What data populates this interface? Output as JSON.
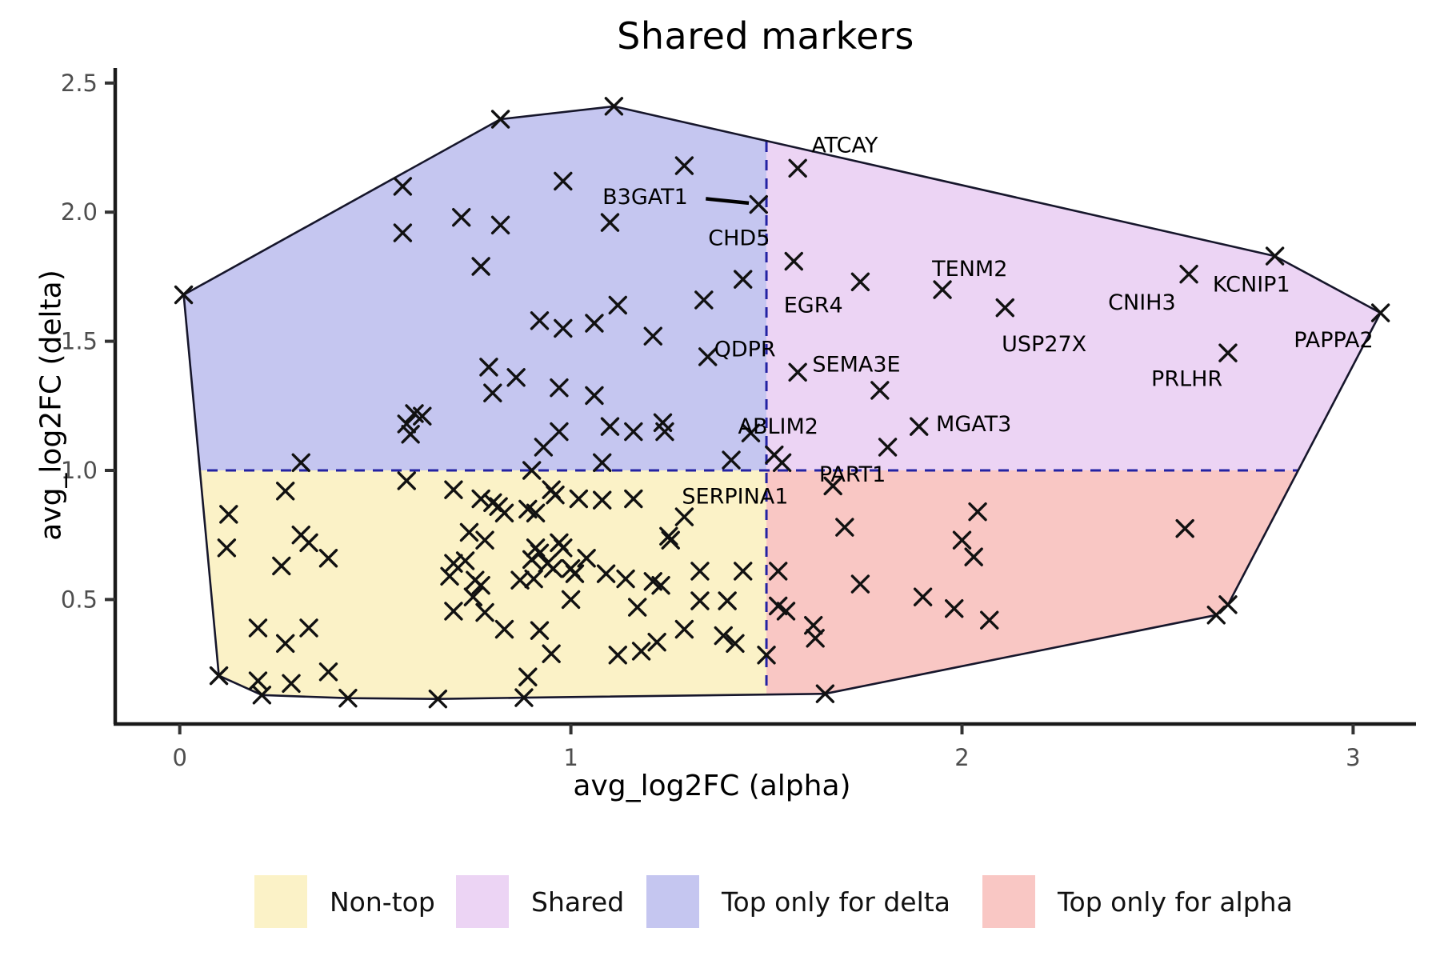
{
  "chart_data": {
    "type": "scatter",
    "title": "Shared markers",
    "xlabel": "avg_log2FC (alpha)",
    "ylabel": "avg_log2FC (delta)",
    "xlim": [
      -0.165,
      3.16
    ],
    "ylim": [
      0.018,
      2.558
    ],
    "x_ticks": [
      "0",
      "1",
      "2",
      "3"
    ],
    "x_tick_values": [
      0,
      1,
      2,
      3
    ],
    "y_ticks": [
      "0.5",
      "1.0",
      "1.5",
      "2.0",
      "2.5"
    ],
    "y_tick_values": [
      0.5,
      1.0,
      1.5,
      2.0,
      2.5
    ],
    "grid": "off",
    "threshold_x": 1.5,
    "threshold_y": 1.0,
    "threshold_line_color": "#2323A3",
    "point_color": "#111111",
    "hull_stroke_color": "#16162B",
    "region_colors": {
      "non_top": "#FBF2C7",
      "shared": "#ECD4F4",
      "top_delta": "#C5C6F0",
      "top_alpha": "#F9C7C4"
    },
    "legend": [
      {
        "label": "Non-top",
        "color": "#FBF2C7"
      },
      {
        "label": "Shared",
        "color": "#ECD4F4"
      },
      {
        "label": "Top only for delta",
        "color": "#C5C6F0"
      },
      {
        "label": "Top only for alpha",
        "color": "#F9C7C4"
      }
    ],
    "hull": [
      [
        0.01,
        1.68
      ],
      [
        0.82,
        2.36
      ],
      [
        1.11,
        2.41
      ],
      [
        2.8,
        1.83
      ],
      [
        3.07,
        1.61
      ],
      [
        2.68,
        0.48
      ],
      [
        2.65,
        0.44
      ],
      [
        1.65,
        0.135
      ],
      [
        0.88,
        0.12
      ],
      [
        0.66,
        0.115
      ],
      [
        0.43,
        0.118
      ],
      [
        0.21,
        0.13
      ],
      [
        0.1,
        0.205
      ]
    ],
    "points": [
      [
        0.01,
        1.68
      ],
      [
        0.82,
        2.36
      ],
      [
        1.11,
        2.41
      ],
      [
        0.57,
        2.1
      ],
      [
        0.98,
        2.12
      ],
      [
        1.29,
        2.18
      ],
      [
        0.72,
        1.98
      ],
      [
        0.82,
        1.95
      ],
      [
        0.57,
        1.92
      ],
      [
        1.1,
        1.96
      ],
      [
        0.77,
        1.79
      ],
      [
        1.44,
        1.74
      ],
      [
        1.34,
        1.66
      ],
      [
        0.92,
        1.58
      ],
      [
        0.98,
        1.55
      ],
      [
        1.06,
        1.57
      ],
      [
        1.12,
        1.64
      ],
      [
        1.21,
        1.52
      ],
      [
        0.79,
        1.4
      ],
      [
        0.86,
        1.36
      ],
      [
        0.8,
        1.3
      ],
      [
        0.97,
        1.32
      ],
      [
        1.06,
        1.29
      ],
      [
        0.58,
        1.18
      ],
      [
        0.6,
        1.22
      ],
      [
        0.62,
        1.21
      ],
      [
        0.59,
        1.14
      ],
      [
        1.1,
        1.17
      ],
      [
        1.16,
        1.15
      ],
      [
        1.235,
        1.185
      ],
      [
        1.24,
        1.15
      ],
      [
        0.97,
        1.15
      ],
      [
        0.93,
        1.09
      ],
      [
        0.31,
        1.03
      ],
      [
        1.08,
        1.03
      ],
      [
        1.41,
        1.04
      ],
      [
        1.52,
        1.06
      ],
      [
        1.54,
        1.03
      ],
      [
        0.9,
        1.0
      ],
      [
        2.8,
        1.83
      ],
      [
        1.79,
        1.31
      ],
      [
        1.81,
        1.09
      ],
      [
        2.04,
        0.84
      ],
      [
        1.7,
        0.78
      ],
      [
        2.57,
        0.775
      ],
      [
        2.0,
        0.73
      ],
      [
        2.03,
        0.665
      ],
      [
        1.53,
        0.61
      ],
      [
        1.74,
        0.56
      ],
      [
        1.9,
        0.51
      ],
      [
        1.53,
        0.475
      ],
      [
        1.55,
        0.455
      ],
      [
        1.98,
        0.465
      ],
      [
        2.07,
        0.42
      ],
      [
        1.62,
        0.4
      ],
      [
        1.625,
        0.35
      ],
      [
        2.68,
        0.48
      ],
      [
        2.65,
        0.44
      ],
      [
        1.5,
        0.285
      ],
      [
        1.65,
        0.135
      ],
      [
        0.58,
        0.96
      ],
      [
        0.27,
        0.92
      ],
      [
        0.7,
        0.925
      ],
      [
        0.77,
        0.89
      ],
      [
        0.8,
        0.875
      ],
      [
        0.815,
        0.86
      ],
      [
        0.83,
        0.835
      ],
      [
        0.95,
        0.925
      ],
      [
        0.96,
        0.905
      ],
      [
        0.89,
        0.85
      ],
      [
        0.91,
        0.835
      ],
      [
        1.02,
        0.89
      ],
      [
        1.08,
        0.885
      ],
      [
        1.16,
        0.89
      ],
      [
        0.125,
        0.83
      ],
      [
        0.74,
        0.76
      ],
      [
        0.78,
        0.73
      ],
      [
        0.31,
        0.75
      ],
      [
        0.33,
        0.72
      ],
      [
        0.12,
        0.7
      ],
      [
        0.91,
        0.7
      ],
      [
        0.92,
        0.68
      ],
      [
        0.9,
        0.655
      ],
      [
        1.04,
        0.66
      ],
      [
        0.97,
        0.72
      ],
      [
        0.98,
        0.7
      ],
      [
        0.94,
        0.64
      ],
      [
        0.955,
        0.62
      ],
      [
        1.0,
        0.62
      ],
      [
        1.01,
        0.6
      ],
      [
        0.7,
        0.64
      ],
      [
        0.73,
        0.65
      ],
      [
        0.38,
        0.66
      ],
      [
        0.26,
        0.63
      ],
      [
        0.69,
        0.59
      ],
      [
        0.755,
        0.575
      ],
      [
        0.77,
        0.555
      ],
      [
        0.87,
        0.575
      ],
      [
        0.905,
        0.58
      ],
      [
        1.09,
        0.6
      ],
      [
        1.14,
        0.58
      ],
      [
        1.21,
        0.57
      ],
      [
        1.23,
        0.555
      ],
      [
        1.33,
        0.61
      ],
      [
        1.44,
        0.61
      ],
      [
        1.33,
        0.495
      ],
      [
        1.4,
        0.495
      ],
      [
        1.0,
        0.5
      ],
      [
        1.17,
        0.47
      ],
      [
        0.75,
        0.51
      ],
      [
        0.7,
        0.455
      ],
      [
        0.78,
        0.45
      ],
      [
        0.83,
        0.385
      ],
      [
        0.92,
        0.38
      ],
      [
        1.29,
        0.385
      ],
      [
        1.22,
        0.335
      ],
      [
        1.18,
        0.3
      ],
      [
        1.39,
        0.36
      ],
      [
        1.42,
        0.33
      ],
      [
        0.95,
        0.29
      ],
      [
        1.12,
        0.285
      ],
      [
        0.89,
        0.2
      ],
      [
        0.2,
        0.39
      ],
      [
        0.33,
        0.39
      ],
      [
        0.27,
        0.33
      ],
      [
        0.38,
        0.22
      ],
      [
        0.2,
        0.185
      ],
      [
        0.285,
        0.175
      ],
      [
        0.1,
        0.205
      ],
      [
        0.21,
        0.13
      ],
      [
        0.43,
        0.118
      ],
      [
        0.66,
        0.115
      ],
      [
        0.88,
        0.12
      ],
      [
        1.25,
        0.745
      ],
      [
        1.255,
        0.73
      ]
    ],
    "gene_labels": [
      {
        "gene": "ATCAY",
        "point": [
          1.58,
          2.17
        ],
        "label": [
          1.7,
          2.26
        ]
      },
      {
        "gene": "B3GAT1",
        "point": [
          1.48,
          2.03
        ],
        "label": [
          1.19,
          2.06
        ],
        "connector": [
          [
            1.345,
            2.052
          ],
          [
            1.455,
            2.035
          ]
        ]
      },
      {
        "gene": "CHD5",
        "point": [
          1.57,
          1.81
        ],
        "label": [
          1.43,
          1.9
        ]
      },
      {
        "gene": "EGR4",
        "point": [
          1.74,
          1.73
        ],
        "label": [
          1.62,
          1.64
        ]
      },
      {
        "gene": "TENM2",
        "point": [
          1.95,
          1.7
        ],
        "label": [
          2.02,
          1.78
        ]
      },
      {
        "gene": "USP27X",
        "point": [
          2.11,
          1.63
        ],
        "label": [
          2.21,
          1.49
        ]
      },
      {
        "gene": "CNIH3",
        "point": [
          2.58,
          1.76
        ],
        "label": [
          2.46,
          1.65
        ]
      },
      {
        "gene": "KCNIP1",
        "point": [
          2.58,
          1.76
        ],
        "label": [
          2.74,
          1.72
        ]
      },
      {
        "gene": "PAPPA2",
        "point": [
          3.07,
          1.61
        ],
        "label": [
          2.95,
          1.505
        ]
      },
      {
        "gene": "PRLHR",
        "point": [
          2.68,
          1.455
        ],
        "label": [
          2.575,
          1.355
        ]
      },
      {
        "gene": "SEMA3E",
        "point": [
          1.58,
          1.38
        ],
        "label": [
          1.73,
          1.41
        ]
      },
      {
        "gene": "QDPR",
        "point": [
          1.35,
          1.44
        ],
        "label": [
          1.445,
          1.47
        ]
      },
      {
        "gene": "ABLIM2",
        "point": [
          1.46,
          1.145
        ],
        "label": [
          1.53,
          1.17
        ]
      },
      {
        "gene": "MGAT3",
        "point": [
          1.89,
          1.17
        ],
        "label": [
          2.03,
          1.18
        ]
      },
      {
        "gene": "PART1",
        "point": [
          1.67,
          0.94
        ],
        "label": [
          1.72,
          0.985
        ]
      },
      {
        "gene": "SERPINA1",
        "point": [
          1.29,
          0.82
        ],
        "label": [
          1.42,
          0.9
        ]
      }
    ]
  }
}
